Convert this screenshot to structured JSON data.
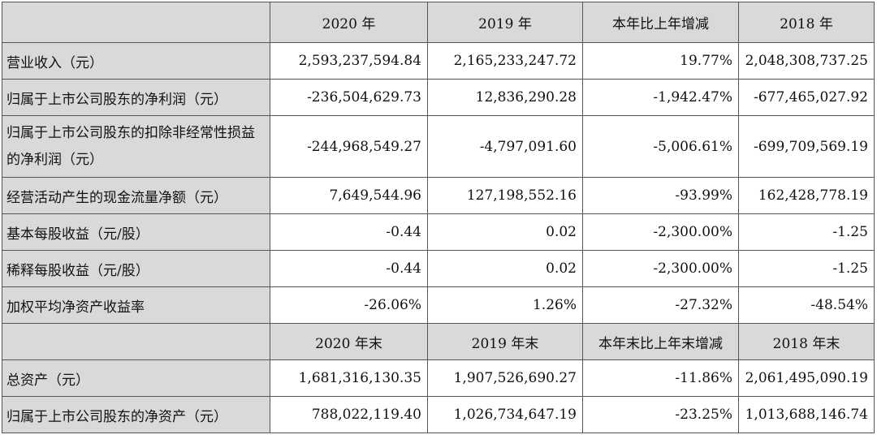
{
  "header1": [
    "2020 年",
    "2019 年",
    "本年比上年增减",
    "2018 年"
  ],
  "rows1": [
    {
      "label": "营业收入（元）",
      "values": [
        "2,593,237,594.84",
        "2,165,233,247.72",
        "19.77%",
        "2,048,308,737.25"
      ]
    },
    {
      "label": "归属于上市公司股东的净利润（元）",
      "values": [
        "-236,504,629.73",
        "12,836,290.28",
        "-1,942.47%",
        "-677,465,027.92"
      ]
    },
    {
      "label": "归属于上市公司股东的扣除非经常性损益的净利润（元）",
      "values": [
        "-244,968,549.27",
        "-4,797,091.60",
        "-5,006.61%",
        "-699,709,569.19"
      ]
    },
    {
      "label": "经营活动产生的现金流量净额（元）",
      "values": [
        "7,649,544.96",
        "127,198,552.16",
        "-93.99%",
        "162,428,778.19"
      ]
    },
    {
      "label": "基本每股收益（元/股）",
      "values": [
        "-0.44",
        "0.02",
        "-2,300.00%",
        "-1.25"
      ]
    },
    {
      "label": "稀释每股收益（元/股）",
      "values": [
        "-0.44",
        "0.02",
        "-2,300.00%",
        "-1.25"
      ]
    },
    {
      "label": "加权平均净资产收益率",
      "values": [
        "-26.06%",
        "1.26%",
        "-27.32%",
        "-48.54%"
      ]
    }
  ],
  "header2": [
    "2020 年末",
    "2019 年末",
    "本年末比上年末增减",
    "2018 年末"
  ],
  "rows2": [
    {
      "label": "总资产（元）",
      "values": [
        "1,681,316,130.35",
        "1,907,526,690.27",
        "-11.86%",
        "2,061,495,090.19"
      ]
    },
    {
      "label": "归属于上市公司股东的净资产（元）",
      "values": [
        "788,022,119.40",
        "1,026,734,647.19",
        "-23.25%",
        "1,013,688,146.74"
      ]
    }
  ]
}
